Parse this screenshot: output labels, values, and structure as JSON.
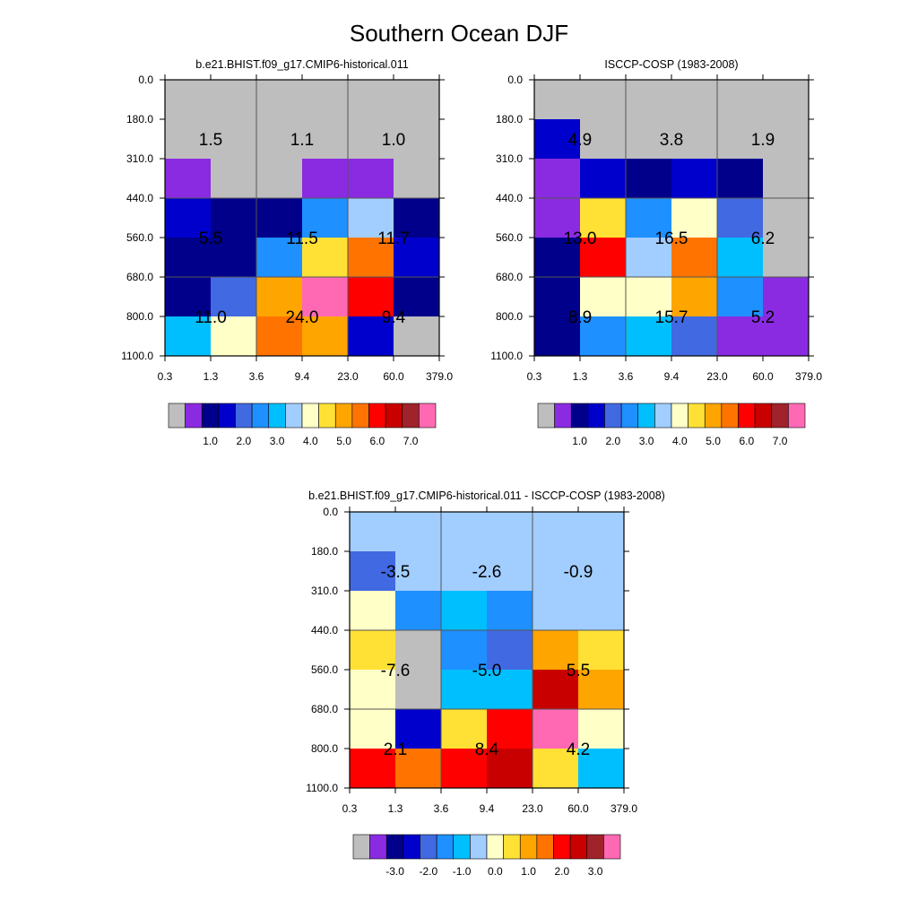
{
  "page_title": "Southern Ocean DJF",
  "cells": {
    "0": [
      [
        "#BEBEBE",
        "#BEBEBE",
        "#BEBEBE",
        "#BEBEBE",
        "#BEBEBE",
        "#BEBEBE"
      ],
      [
        "#BEBEBE",
        "#BEBEBE",
        "#BEBEBE",
        "#BEBEBE",
        "#BEBEBE",
        "#BEBEBE"
      ],
      [
        "#8A2BE2",
        "#BEBEBE",
        "#BEBEBE",
        "#8A2BE2",
        "#8A2BE2",
        "#BEBEBE"
      ],
      [
        "#0000CD",
        "#00008B",
        "#00008B",
        "#1E90FF",
        "#A2CDFF",
        "#00008B"
      ],
      [
        "#00008B",
        "#00008B",
        "#1E90FF",
        "#FFE135",
        "#FF7400",
        "#0000CD"
      ],
      [
        "#00008B",
        "#4169E1",
        "#FFA500",
        "#FF69B4",
        "#FF0000",
        "#00008B"
      ],
      [
        "#00BFFF",
        "#FFFFC8",
        "#FF7400",
        "#FFA500",
        "#0000CD",
        "#BEBEBE"
      ]
    ],
    "1": [
      [
        "#BEBEBE",
        "#BEBEBE",
        "#BEBEBE",
        "#BEBEBE",
        "#BEBEBE",
        "#BEBEBE"
      ],
      [
        "#0000CD",
        "#BEBEBE",
        "#BEBEBE",
        "#BEBEBE",
        "#BEBEBE",
        "#BEBEBE"
      ],
      [
        "#8A2BE2",
        "#0000CD",
        "#00008B",
        "#0000CD",
        "#00008B",
        "#BEBEBE"
      ],
      [
        "#8A2BE2",
        "#FFE135",
        "#1E90FF",
        "#FFFFC8",
        "#4169E1",
        "#BEBEBE"
      ],
      [
        "#00008B",
        "#FF0000",
        "#A2CDFF",
        "#FF7400",
        "#00BFFF",
        "#BEBEBE"
      ],
      [
        "#00008B",
        "#FFFFC8",
        "#FFFFC8",
        "#FFA500",
        "#1E90FF",
        "#8A2BE2"
      ],
      [
        "#00008B",
        "#1E90FF",
        "#00BFFF",
        "#4169E1",
        "#8A2BE2",
        "#8A2BE2"
      ]
    ],
    "2": [
      [
        "#A2CDFF",
        "#A2CDFF",
        "#A2CDFF",
        "#A2CDFF",
        "#A2CDFF",
        "#A2CDFF"
      ],
      [
        "#4169E1",
        "#A2CDFF",
        "#A2CDFF",
        "#A2CDFF",
        "#A2CDFF",
        "#A2CDFF"
      ],
      [
        "#FFFFC8",
        "#1E90FF",
        "#00BFFF",
        "#1E90FF",
        "#A2CDFF",
        "#A2CDFF"
      ],
      [
        "#FFE135",
        "#BEBEBE",
        "#1E90FF",
        "#4169E1",
        "#FFA500",
        "#FFE135"
      ],
      [
        "#FFFFC8",
        "#BEBEBE",
        "#00BFFF",
        "#00BFFF",
        "#C80000",
        "#FFA500"
      ],
      [
        "#FFFFC8",
        "#0000CD",
        "#FFE135",
        "#FF0000",
        "#FF69B4",
        "#FFFFC8"
      ],
      [
        "#FF0000",
        "#FF7400",
        "#FF0000",
        "#C80000",
        "#FFE135",
        "#00BFFF"
      ]
    ]
  },
  "chart_data": [
    {
      "type": "heatmap",
      "title": "b.e21.BHIST.f09_g17.CMIP6-historical.011",
      "x_ticks": [
        "0.3",
        "1.3",
        "3.6",
        "9.4",
        "23.0",
        "60.0",
        "379.0"
      ],
      "y_ticks": [
        "0.0",
        "180.0",
        "310.0",
        "440.0",
        "560.0",
        "680.0",
        "800.0",
        "1100.0"
      ],
      "block_values": [
        [
          "1.5",
          "1.1",
          "1.0"
        ],
        [
          "5.5",
          "11.5",
          "11.7"
        ],
        [
          "11.0",
          "24.0",
          "9.4"
        ]
      ],
      "colorbar_labels": [
        "1.0",
        "2.0",
        "3.0",
        "4.0",
        "5.0",
        "6.0",
        "7.0"
      ],
      "colorbar_colors": [
        "#BEBEBE",
        "#8A2BE2",
        "#00008B",
        "#0000CD",
        "#4169E1",
        "#1E90FF",
        "#00BFFF",
        "#A2CDFF",
        "#FFFFC8",
        "#FFE135",
        "#FFA500",
        "#FF7400",
        "#FF0000",
        "#C80000",
        "#A0222A",
        "#FF69B4"
      ]
    },
    {
      "type": "heatmap",
      "title": "ISCCP-COSP (1983-2008)",
      "x_ticks": [
        "0.3",
        "1.3",
        "3.6",
        "9.4",
        "23.0",
        "60.0",
        "379.0"
      ],
      "y_ticks": [
        "0.0",
        "180.0",
        "310.0",
        "440.0",
        "560.0",
        "680.0",
        "800.0",
        "1100.0"
      ],
      "block_values": [
        [
          "4.9",
          "3.8",
          "1.9"
        ],
        [
          "13.0",
          "16.5",
          "6.2"
        ],
        [
          "8.9",
          "15.7",
          "5.2"
        ]
      ],
      "colorbar_labels": [
        "1.0",
        "2.0",
        "3.0",
        "4.0",
        "5.0",
        "6.0",
        "7.0"
      ],
      "colorbar_colors": [
        "#BEBEBE",
        "#8A2BE2",
        "#00008B",
        "#0000CD",
        "#4169E1",
        "#1E90FF",
        "#00BFFF",
        "#A2CDFF",
        "#FFFFC8",
        "#FFE135",
        "#FFA500",
        "#FF7400",
        "#FF0000",
        "#C80000",
        "#A0222A",
        "#FF69B4"
      ]
    },
    {
      "type": "heatmap",
      "title": "b.e21.BHIST.f09_g17.CMIP6-historical.011 - ISCCP-COSP (1983-2008)",
      "x_ticks": [
        "0.3",
        "1.3",
        "3.6",
        "9.4",
        "23.0",
        "60.0",
        "379.0"
      ],
      "y_ticks": [
        "0.0",
        "180.0",
        "310.0",
        "440.0",
        "560.0",
        "680.0",
        "800.0",
        "1100.0"
      ],
      "block_values": [
        [
          "-3.5",
          "-2.6",
          "-0.9"
        ],
        [
          "-7.6",
          "-5.0",
          "5.5"
        ],
        [
          "2.1",
          "8.4",
          "4.2"
        ]
      ],
      "colorbar_labels": [
        "-3.0",
        "-2.0",
        "-1.0",
        "0.0",
        "1.0",
        "2.0",
        "3.0"
      ],
      "colorbar_colors": [
        "#BEBEBE",
        "#8A2BE2",
        "#00008B",
        "#0000CD",
        "#4169E1",
        "#1E90FF",
        "#00BFFF",
        "#A2CDFF",
        "#FFFFC8",
        "#FFE135",
        "#FFA500",
        "#FF7400",
        "#FF0000",
        "#C80000",
        "#A0222A",
        "#FF69B4"
      ]
    }
  ]
}
